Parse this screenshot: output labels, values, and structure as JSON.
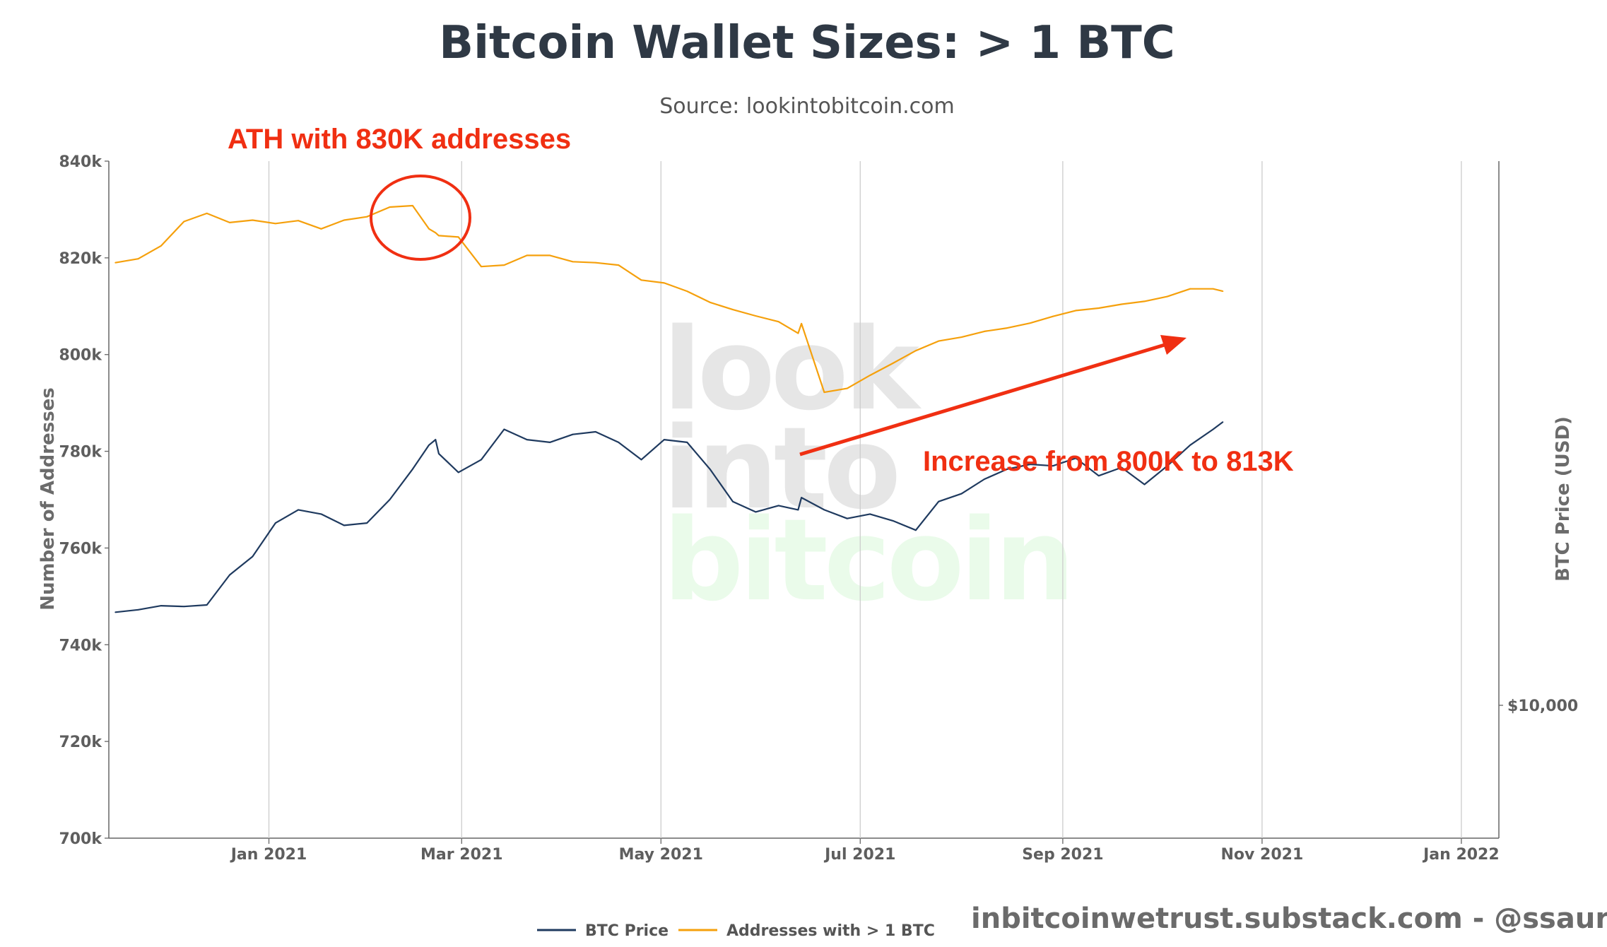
{
  "chart_data": {
    "type": "line",
    "title": "Bitcoin Wallet Sizes: > 1 BTC",
    "subtitle": "Source: lookintobitcoin.com",
    "ylabel": "Number of Addresses",
    "y2label": "BTC Price (USD)",
    "ylim": [
      700000,
      840000
    ],
    "y_ticks": [
      "700k",
      "720k",
      "740k",
      "760k",
      "780k",
      "800k",
      "820k",
      "840k"
    ],
    "y2_ticks": [
      "$10,000"
    ],
    "x_ticks": [
      "Jan 2021",
      "Mar 2021",
      "May 2021",
      "Jul 2021",
      "Sep 2021",
      "Nov 2021",
      "Jan 2022"
    ],
    "grid": "vertical",
    "legend_position": "bottom",
    "x_dates": [
      "2020-11-15",
      "2020-11-22",
      "2020-11-29",
      "2020-12-06",
      "2020-12-13",
      "2020-12-20",
      "2020-12-27",
      "2021-01-03",
      "2021-01-10",
      "2021-01-17",
      "2021-01-24",
      "2021-01-31",
      "2021-02-07",
      "2021-02-14",
      "2021-02-19",
      "2021-02-21",
      "2021-02-22",
      "2021-02-28",
      "2021-03-07",
      "2021-03-14",
      "2021-03-21",
      "2021-03-28",
      "2021-04-04",
      "2021-04-11",
      "2021-04-18",
      "2021-04-25",
      "2021-05-02",
      "2021-05-09",
      "2021-05-16",
      "2021-05-23",
      "2021-05-30",
      "2021-06-06",
      "2021-06-12",
      "2021-06-13",
      "2021-06-20",
      "2021-06-27",
      "2021-07-04",
      "2021-07-11",
      "2021-07-18",
      "2021-07-25",
      "2021-08-01",
      "2021-08-08",
      "2021-08-15",
      "2021-08-22",
      "2021-08-29",
      "2021-09-05",
      "2021-09-12",
      "2021-09-19",
      "2021-09-26",
      "2021-10-03",
      "2021-10-10",
      "2021-10-17",
      "2021-10-20"
    ],
    "series": [
      {
        "name": "BTC Price",
        "color": "#1f3a5f",
        "axis": "right",
        "values": [
          18400,
          18700,
          19200,
          19100,
          19300,
          23500,
          26500,
          33000,
          36000,
          35000,
          32500,
          33000,
          38500,
          47000,
          55000,
          57000,
          52000,
          46000,
          50000,
          61000,
          57000,
          56000,
          59000,
          60000,
          56000,
          50000,
          57000,
          56000,
          47000,
          38000,
          35500,
          37000,
          36000,
          39000,
          36000,
          34000,
          35000,
          33500,
          31500,
          38000,
          40000,
          44000,
          47000,
          48500,
          48000,
          50500,
          45000,
          47500,
          42500,
          48000,
          55000,
          61000,
          64000
        ]
      },
      {
        "name": "Addresses with > 1 BTC",
        "color": "#f5a00c",
        "axis": "left",
        "values": [
          819000,
          819800,
          822500,
          827500,
          829200,
          827300,
          827800,
          827100,
          827700,
          826000,
          827800,
          828500,
          830500,
          830800,
          826000,
          825200,
          824600,
          824300,
          818200,
          818500,
          820500,
          820500,
          819200,
          819000,
          818500,
          815400,
          814800,
          813100,
          810800,
          809300,
          808000,
          806800,
          804400,
          806400,
          792200,
          793000,
          795700,
          798200,
          800800,
          802800,
          803600,
          804800,
          805500,
          806500,
          807900,
          809100,
          809600,
          810400,
          811000,
          812000,
          813600,
          813600,
          813100
        ]
      }
    ],
    "annotations": [
      {
        "text": "ATH with 830K addresses",
        "date": "2021-02-21",
        "value": 830000
      },
      {
        "text": "Increase from 800K to 813K",
        "from_date": "2021-07-01",
        "from_value": 780000,
        "to_date": "2021-10-21",
        "to_value": 804000
      }
    ]
  },
  "watermark": {
    "line1": "look",
    "line2": "into",
    "line3": "bitcoin"
  },
  "legend": {
    "btc": "BTC Price",
    "addr": "Addresses with > 1 BTC"
  },
  "credit": "inbitcoinwetrust.substack.com - @ssaurel",
  "colors": {
    "annotation": "#f02f12",
    "btc_line": "#1f3a5f",
    "address_line": "#f5a00c",
    "grid": "#cccccc",
    "watermark_grey": "#e6e6e6",
    "watermark_green": "#eafbea"
  }
}
